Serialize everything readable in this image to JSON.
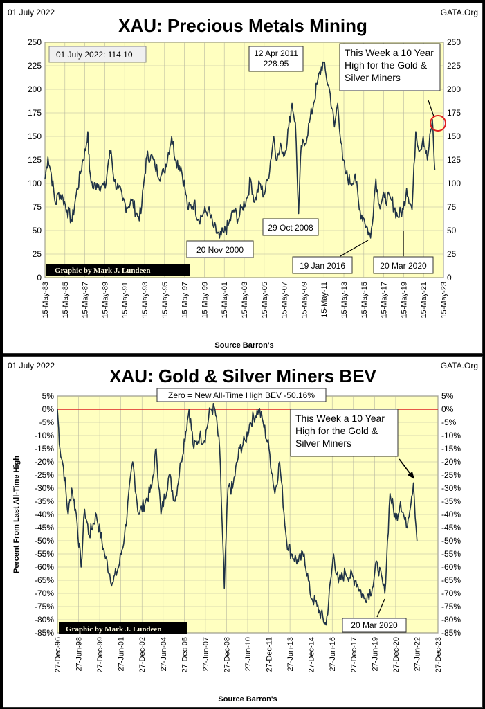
{
  "chart_data": [
    {
      "type": "line",
      "corner_left": "01 July 2022",
      "corner_right": "GATA.Org",
      "title": "XAU: Precious Metals Mining",
      "xlabel": "Source Barron's",
      "ylabel": "",
      "ylim": [
        0,
        250
      ],
      "xlim": [
        "1983-05-15",
        "2023-05-15"
      ],
      "y_ticks": [
        "0",
        "25",
        "50",
        "75",
        "100",
        "125",
        "150",
        "175",
        "200",
        "225",
        "250"
      ],
      "x_ticks": [
        "15-May-83",
        "15-May-85",
        "15-May-87",
        "15-May-89",
        "15-May-91",
        "15-May-93",
        "15-May-95",
        "15-May-97",
        "15-May-99",
        "15-May-01",
        "15-May-03",
        "15-May-05",
        "15-May-07",
        "15-May-09",
        "15-May-11",
        "15-May-13",
        "15-May-15",
        "15-May-17",
        "15-May-19",
        "15-May-21",
        "15-May-23"
      ],
      "grid": true,
      "line_color": "#1f3246",
      "background": "#ffffc0",
      "value_box": "01 July 2022:  114.10",
      "credit": "Graphic by Mark J. Lundeen",
      "annotations": {
        "peak_2011": [
          "12 Apr 2011",
          "228.95"
        ],
        "low_2000": "20 Nov 2000",
        "low_2008": "29 Oct 2008",
        "low_2016": "19 Jan 2016",
        "low_2020": "20 Mar 2020",
        "note": [
          "This Week a 10 Year",
          "High for the Gold &",
          "Silver Miners"
        ]
      },
      "series": [
        {
          "points": [
            [
              "1983-05-15",
              105
            ],
            [
              "1983-09-01",
              128
            ],
            [
              "1984-01-01",
              110
            ],
            [
              "1984-06-01",
              78
            ],
            [
              "1984-10-01",
              90
            ],
            [
              "1985-03-01",
              85
            ],
            [
              "1985-08-01",
              72
            ],
            [
              "1986-02-01",
              60
            ],
            [
              "1986-07-01",
              88
            ],
            [
              "1986-12-01",
              110
            ],
            [
              "1987-03-01",
              125
            ],
            [
              "1987-06-01",
              135
            ],
            [
              "1987-09-01",
              155
            ],
            [
              "1987-11-01",
              115
            ],
            [
              "1988-03-01",
              95
            ],
            [
              "1988-08-01",
              100
            ],
            [
              "1989-02-01",
              98
            ],
            [
              "1989-06-01",
              95
            ],
            [
              "1989-10-01",
              125
            ],
            [
              "1990-01-01",
              135
            ],
            [
              "1990-05-01",
              102
            ],
            [
              "1990-10-01",
              95
            ],
            [
              "1991-03-01",
              82
            ],
            [
              "1991-08-01",
              75
            ],
            [
              "1992-02-01",
              82
            ],
            [
              "1992-09-01",
              65
            ],
            [
              "1993-01-01",
              68
            ],
            [
              "1993-05-01",
              105
            ],
            [
              "1993-08-01",
              128
            ],
            [
              "1994-01-01",
              130
            ],
            [
              "1994-06-01",
              118
            ],
            [
              "1995-01-01",
              108
            ],
            [
              "1995-05-01",
              112
            ],
            [
              "1996-02-01",
              150
            ],
            [
              "1996-07-01",
              125
            ],
            [
              "1997-01-01",
              118
            ],
            [
              "1997-06-01",
              95
            ],
            [
              "1997-10-01",
              72
            ],
            [
              "1998-05-01",
              80
            ],
            [
              "1998-10-01",
              62
            ],
            [
              "1999-04-01",
              68
            ],
            [
              "1999-10-01",
              72
            ],
            [
              "2000-04-01",
              55
            ],
            [
              "2000-11-20",
              42
            ],
            [
              "2001-05-01",
              48
            ],
            [
              "2001-10-01",
              55
            ],
            [
              "2002-05-01",
              72
            ],
            [
              "2002-10-01",
              62
            ],
            [
              "2003-03-01",
              75
            ],
            [
              "2003-09-01",
              85
            ],
            [
              "2004-01-01",
              105
            ],
            [
              "2004-06-01",
              80
            ],
            [
              "2004-12-01",
              100
            ],
            [
              "2005-05-01",
              88
            ],
            [
              "2005-10-01",
              105
            ],
            [
              "2006-05-01",
              150
            ],
            [
              "2006-09-01",
              125
            ],
            [
              "2007-02-01",
              140
            ],
            [
              "2007-06-01",
              130
            ],
            [
              "2007-11-01",
              160
            ],
            [
              "2008-03-01",
              185
            ],
            [
              "2008-07-01",
              165
            ],
            [
              "2008-10-29",
              68
            ],
            [
              "2009-02-01",
              140
            ],
            [
              "2009-06-01",
              140
            ],
            [
              "2009-12-01",
              165
            ],
            [
              "2010-05-01",
              185
            ],
            [
              "2010-09-01",
              205
            ],
            [
              "2011-04-12",
              229
            ],
            [
              "2011-08-01",
              215
            ],
            [
              "2012-01-01",
              195
            ],
            [
              "2012-06-01",
              160
            ],
            [
              "2012-10-01",
              185
            ],
            [
              "2013-04-01",
              125
            ],
            [
              "2013-08-01",
              110
            ],
            [
              "2014-02-01",
              100
            ],
            [
              "2014-07-01",
              110
            ],
            [
              "2014-12-01",
              72
            ],
            [
              "2015-06-01",
              62
            ],
            [
              "2016-01-19",
              42
            ],
            [
              "2016-08-01",
              105
            ],
            [
              "2016-12-01",
              78
            ],
            [
              "2017-06-01",
              85
            ],
            [
              "2018-03-01",
              82
            ],
            [
              "2018-10-01",
              65
            ],
            [
              "2019-05-01",
              72
            ],
            [
              "2019-09-01",
              95
            ],
            [
              "2020-03-20",
              72
            ],
            [
              "2020-08-01",
              155
            ],
            [
              "2021-01-01",
              135
            ],
            [
              "2021-05-01",
              150
            ],
            [
              "2021-10-01",
              125
            ],
            [
              "2022-04-01",
              168
            ],
            [
              "2022-07-01",
              114
            ]
          ]
        }
      ]
    },
    {
      "type": "line",
      "corner_left": "01 July 2022",
      "corner_right": "GATA.Org",
      "title": "XAU: Gold & Silver Miners BEV",
      "subtitle": "Zero = New All-Time High BEV -50.16%",
      "xlabel": "Source Barron's",
      "ylabel": "Percent From Last All-Time High",
      "ylim": [
        -85,
        5
      ],
      "xlim": [
        "1996-12-27",
        "2023-12-27"
      ],
      "y_ticks": [
        "5%",
        "0%",
        "-5%",
        "-10%",
        "-15%",
        "-20%",
        "-25%",
        "-30%",
        "-35%",
        "-40%",
        "-45%",
        "-50%",
        "-55%",
        "-60%",
        "-65%",
        "-70%",
        "-75%",
        "-80%",
        "-85%"
      ],
      "x_ticks": [
        "27-Dec-96",
        "27-Jun-98",
        "27-Dec-99",
        "27-Jun-01",
        "27-Dec-02",
        "27-Jun-04",
        "27-Dec-05",
        "27-Jun-07",
        "27-Dec-08",
        "27-Jun-10",
        "27-Dec-11",
        "27-Jun-13",
        "27-Dec-14",
        "27-Jun-16",
        "27-Dec-17",
        "27-Jun-19",
        "27-Dec-20",
        "27-Jun-22",
        "27-Dec-23"
      ],
      "grid": true,
      "line_color": "#1f3246",
      "zero_line_color": "#dd2222",
      "background": "#ffffc0",
      "credit": "Graphic by Mark J. Lundeen",
      "annotations": {
        "low_2020": "20 Mar 2020",
        "note": [
          "This Week a 10 Year",
          "High for the Gold &",
          "Silver Miners"
        ]
      },
      "series": [
        {
          "points": [
            [
              "1996-12-27",
              0
            ],
            [
              "1997-03-01",
              -15
            ],
            [
              "1997-06-01",
              -22
            ],
            [
              "1997-10-01",
              -40
            ],
            [
              "1998-01-01",
              -30
            ],
            [
              "1998-05-01",
              -40
            ],
            [
              "1998-09-01",
              -60
            ],
            [
              "1998-12-01",
              -38
            ],
            [
              "1999-04-01",
              -48
            ],
            [
              "1999-10-01",
              -40
            ],
            [
              "2000-05-01",
              -55
            ],
            [
              "2000-11-20",
              -66
            ],
            [
              "2001-05-01",
              -60
            ],
            [
              "2001-10-01",
              -48
            ],
            [
              "2002-05-01",
              -20
            ],
            [
              "2002-10-01",
              -40
            ],
            [
              "2003-04-01",
              -35
            ],
            [
              "2003-09-01",
              -30
            ],
            [
              "2004-01-01",
              -15
            ],
            [
              "2004-05-01",
              -40
            ],
            [
              "2004-12-01",
              -25
            ],
            [
              "2005-05-01",
              -35
            ],
            [
              "2005-10-01",
              -20
            ],
            [
              "2006-05-01",
              0
            ],
            [
              "2006-09-01",
              -15
            ],
            [
              "2007-02-01",
              -10
            ],
            [
              "2007-06-01",
              -12
            ],
            [
              "2007-11-01",
              0
            ],
            [
              "2008-03-01",
              0
            ],
            [
              "2008-07-01",
              -15
            ],
            [
              "2008-10-29",
              -68
            ],
            [
              "2009-02-01",
              -30
            ],
            [
              "2009-06-01",
              -30
            ],
            [
              "2009-12-01",
              -15
            ],
            [
              "2010-05-01",
              -12
            ],
            [
              "2010-09-01",
              -5
            ],
            [
              "2011-04-12",
              0
            ],
            [
              "2011-08-01",
              -5
            ],
            [
              "2012-01-01",
              -15
            ],
            [
              "2012-06-01",
              -32
            ],
            [
              "2012-10-01",
              -20
            ],
            [
              "2013-04-01",
              -50
            ],
            [
              "2013-08-01",
              -55
            ],
            [
              "2014-02-01",
              -58
            ],
            [
              "2014-07-01",
              -55
            ],
            [
              "2014-12-01",
              -70
            ],
            [
              "2015-06-01",
              -75
            ],
            [
              "2016-01-19",
              -82
            ],
            [
              "2016-08-01",
              -55
            ],
            [
              "2016-12-01",
              -66
            ],
            [
              "2017-06-01",
              -62
            ],
            [
              "2018-03-01",
              -65
            ],
            [
              "2018-10-01",
              -72
            ],
            [
              "2019-05-01",
              -68
            ],
            [
              "2019-09-01",
              -58
            ],
            [
              "2020-03-20",
              -70
            ],
            [
              "2020-08-01",
              -32
            ],
            [
              "2021-01-01",
              -42
            ],
            [
              "2021-05-01",
              -35
            ],
            [
              "2021-10-01",
              -45
            ],
            [
              "2022-04-01",
              -28
            ],
            [
              "2022-07-01",
              -50
            ]
          ]
        }
      ]
    }
  ]
}
